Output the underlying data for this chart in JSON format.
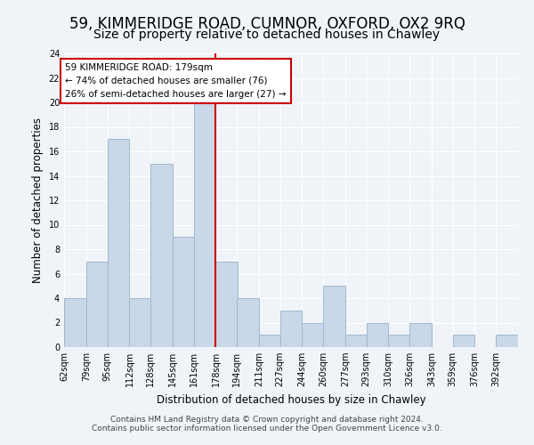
{
  "title": "59, KIMMERIDGE ROAD, CUMNOR, OXFORD, OX2 9RQ",
  "subtitle": "Size of property relative to detached houses in Chawley",
  "xlabel": "Distribution of detached houses by size in Chawley",
  "ylabel": "Number of detached properties",
  "bin_labels": [
    "62sqm",
    "79sqm",
    "95sqm",
    "112sqm",
    "128sqm",
    "145sqm",
    "161sqm",
    "178sqm",
    "194sqm",
    "211sqm",
    "227sqm",
    "244sqm",
    "260sqm",
    "277sqm",
    "293sqm",
    "310sqm",
    "326sqm",
    "343sqm",
    "359sqm",
    "376sqm",
    "392sqm"
  ],
  "bin_edges": [
    62,
    79,
    95,
    112,
    128,
    145,
    161,
    178,
    194,
    211,
    227,
    244,
    260,
    277,
    293,
    310,
    326,
    343,
    359,
    376,
    392
  ],
  "bar_heights": [
    4,
    7,
    17,
    4,
    15,
    9,
    20,
    7,
    4,
    1,
    3,
    2,
    5,
    1,
    2,
    1,
    2,
    0,
    1,
    0,
    1
  ],
  "bar_color": "#c8d8e8",
  "bar_edge_color": "#a0b8cc",
  "reference_line_x": 178,
  "reference_line_color": "#cc0000",
  "ylim": [
    0,
    24
  ],
  "yticks": [
    0,
    2,
    4,
    6,
    8,
    10,
    12,
    14,
    16,
    18,
    20,
    22,
    24
  ],
  "annotation_title": "59 KIMMERIDGE ROAD: 179sqm",
  "annotation_line1": "← 74% of detached houses are smaller (76)",
  "annotation_line2": "26% of semi-detached houses are larger (27) →",
  "annotation_box_edge": "#cc0000",
  "footer_line1": "Contains HM Land Registry data © Crown copyright and database right 2024.",
  "footer_line2": "Contains public sector information licensed under the Open Government Licence v3.0.",
  "background_color": "#f0f4f8",
  "grid_color": "#ffffff",
  "title_fontsize": 12,
  "subtitle_fontsize": 10,
  "axis_label_fontsize": 8.5,
  "tick_fontsize": 7,
  "footer_fontsize": 6.5,
  "annotation_fontsize": 7.5
}
